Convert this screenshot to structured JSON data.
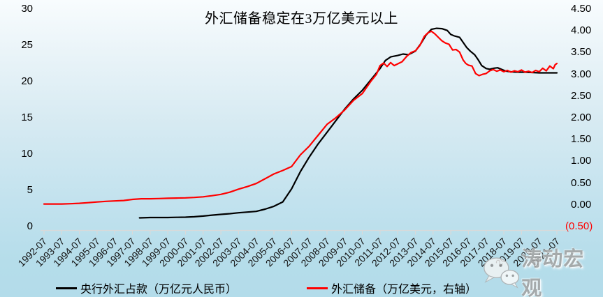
{
  "chart_data": {
    "type": "line",
    "title": "外汇储备稳定在3万亿美元以上",
    "background_top": "#f8fcfe",
    "background_bottom": "#b3dcea",
    "axis_color": "#d9d9d9",
    "grid": false,
    "legend_position": "bottom",
    "x_labels": [
      "1992-07",
      "1993-07",
      "1994-07",
      "1995-07",
      "1996-07",
      "1997-07",
      "1998-07",
      "1999-07",
      "2000-07",
      "2001-07",
      "2002-07",
      "2003-07",
      "2004-07",
      "2005-07",
      "2006-07",
      "2007-07",
      "2008-07",
      "2009-07",
      "2010-07",
      "2011-07",
      "2012-07",
      "2013-07",
      "2014-07",
      "2015-07",
      "2016-07",
      "2017-07",
      "2018-07",
      "2019-07",
      "2020-07",
      "2021-07"
    ],
    "left_axis": {
      "min": 0,
      "max": 30,
      "ticks": [
        30,
        25,
        20,
        15,
        10,
        5,
        0
      ]
    },
    "right_axis": {
      "min": -0.5,
      "max": 4.5,
      "ticks": [
        {
          "label": "4.50",
          "value": 4.5
        },
        {
          "label": "4.00",
          "value": 4.0
        },
        {
          "label": "3.50",
          "value": 3.5
        },
        {
          "label": "3.00",
          "value": 3.0
        },
        {
          "label": "2.50",
          "value": 2.5
        },
        {
          "label": "2.00",
          "value": 2.0
        },
        {
          "label": "1.50",
          "value": 1.5
        },
        {
          "label": "1.00",
          "value": 1.0
        },
        {
          "label": "0.50",
          "value": 0.5
        },
        {
          "label": "0.00",
          "value": 0.0
        },
        {
          "label": "(0.50)",
          "value": -0.5,
          "color": "#ff0000",
          "dx": -8
        }
      ]
    },
    "series": [
      {
        "name": "央行外汇占款（万亿元人民币）",
        "color": "#000000",
        "axis": "left",
        "points": [
          [
            5.4,
            1.2
          ],
          [
            6,
            1.25
          ],
          [
            6.5,
            1.25
          ],
          [
            7,
            1.25
          ],
          [
            7.5,
            1.28
          ],
          [
            8,
            1.3
          ],
          [
            8.5,
            1.36
          ],
          [
            9,
            1.45
          ],
          [
            9.5,
            1.58
          ],
          [
            10,
            1.68
          ],
          [
            10.5,
            1.78
          ],
          [
            11,
            1.9
          ],
          [
            11.5,
            2.0
          ],
          [
            12,
            2.1
          ],
          [
            12.5,
            2.4
          ],
          [
            13,
            2.8
          ],
          [
            13.5,
            3.4
          ],
          [
            14,
            5.2
          ],
          [
            14.5,
            7.6
          ],
          [
            15,
            9.6
          ],
          [
            15.5,
            11.4
          ],
          [
            16,
            13.0
          ],
          [
            16.5,
            14.6
          ],
          [
            17,
            16.2
          ],
          [
            17.5,
            17.6
          ],
          [
            18,
            18.8
          ],
          [
            18.5,
            20.3
          ],
          [
            19,
            21.8
          ],
          [
            19.3,
            22.9
          ],
          [
            19.6,
            23.4
          ],
          [
            20,
            23.6
          ],
          [
            20.3,
            23.8
          ],
          [
            20.6,
            23.7
          ],
          [
            21,
            24.2
          ],
          [
            21.3,
            25.2
          ],
          [
            21.6,
            26.4
          ],
          [
            21.9,
            27.2
          ],
          [
            22.2,
            27.35
          ],
          [
            22.5,
            27.3
          ],
          [
            22.8,
            27.05
          ],
          [
            23,
            26.5
          ],
          [
            23.2,
            26.3
          ],
          [
            23.5,
            26.1
          ],
          [
            23.7,
            25.4
          ],
          [
            23.9,
            24.7
          ],
          [
            24.1,
            24.2
          ],
          [
            24.35,
            23.7
          ],
          [
            24.55,
            23.0
          ],
          [
            24.75,
            22.2
          ],
          [
            25,
            21.8
          ],
          [
            25.2,
            21.7
          ],
          [
            25.45,
            21.85
          ],
          [
            25.65,
            21.9
          ],
          [
            25.85,
            21.7
          ],
          [
            26.1,
            21.45
          ],
          [
            26.4,
            21.35
          ],
          [
            26.8,
            21.3
          ],
          [
            27.2,
            21.3
          ],
          [
            27.6,
            21.25
          ],
          [
            28,
            21.2
          ],
          [
            28.5,
            21.2
          ],
          [
            29,
            21.2
          ]
        ]
      },
      {
        "name": "外汇储备（万亿美元，右轴）",
        "color": "#ff0000",
        "axis": "right",
        "points": [
          [
            0,
            0.02
          ],
          [
            0.5,
            0.02
          ],
          [
            1,
            0.02
          ],
          [
            1.5,
            0.025
          ],
          [
            2,
            0.035
          ],
          [
            2.5,
            0.05
          ],
          [
            3,
            0.065
          ],
          [
            3.5,
            0.08
          ],
          [
            4,
            0.09
          ],
          [
            4.5,
            0.1
          ],
          [
            5,
            0.125
          ],
          [
            5.5,
            0.14
          ],
          [
            6,
            0.14
          ],
          [
            6.5,
            0.145
          ],
          [
            7,
            0.15
          ],
          [
            7.5,
            0.155
          ],
          [
            8,
            0.16
          ],
          [
            8.5,
            0.17
          ],
          [
            9,
            0.185
          ],
          [
            9.5,
            0.21
          ],
          [
            10,
            0.24
          ],
          [
            10.5,
            0.29
          ],
          [
            11,
            0.36
          ],
          [
            11.5,
            0.42
          ],
          [
            12,
            0.49
          ],
          [
            12.5,
            0.6
          ],
          [
            13,
            0.71
          ],
          [
            13.5,
            0.79
          ],
          [
            14,
            0.88
          ],
          [
            14.5,
            1.15
          ],
          [
            15,
            1.35
          ],
          [
            15.5,
            1.6
          ],
          [
            16,
            1.85
          ],
          [
            16.5,
            2.0
          ],
          [
            17,
            2.18
          ],
          [
            17.5,
            2.4
          ],
          [
            18,
            2.56
          ],
          [
            18.5,
            2.85
          ],
          [
            18.8,
            3.0
          ],
          [
            19,
            3.2
          ],
          [
            19.2,
            3.26
          ],
          [
            19.4,
            3.18
          ],
          [
            19.6,
            3.27
          ],
          [
            19.8,
            3.2
          ],
          [
            20,
            3.24
          ],
          [
            20.25,
            3.29
          ],
          [
            20.5,
            3.41
          ],
          [
            20.75,
            3.5
          ],
          [
            21,
            3.54
          ],
          [
            21.25,
            3.66
          ],
          [
            21.5,
            3.87
          ],
          [
            21.7,
            3.95
          ],
          [
            21.9,
            3.99
          ],
          [
            22.1,
            3.93
          ],
          [
            22.3,
            3.85
          ],
          [
            22.5,
            3.77
          ],
          [
            22.7,
            3.72
          ],
          [
            22.9,
            3.69
          ],
          [
            23.1,
            3.56
          ],
          [
            23.3,
            3.57
          ],
          [
            23.5,
            3.51
          ],
          [
            23.7,
            3.33
          ],
          [
            23.85,
            3.25
          ],
          [
            24,
            3.21
          ],
          [
            24.2,
            3.19
          ],
          [
            24.4,
            3.02
          ],
          [
            24.6,
            2.97
          ],
          [
            24.8,
            3.0
          ],
          [
            25,
            3.02
          ],
          [
            25.2,
            3.08
          ],
          [
            25.4,
            3.11
          ],
          [
            25.6,
            3.07
          ],
          [
            25.8,
            3.1
          ],
          [
            26,
            3.06
          ],
          [
            26.2,
            3.09
          ],
          [
            26.4,
            3.05
          ],
          [
            26.6,
            3.08
          ],
          [
            26.8,
            3.06
          ],
          [
            27,
            3.1
          ],
          [
            27.2,
            3.05
          ],
          [
            27.4,
            3.07
          ],
          [
            27.6,
            3.04
          ],
          [
            27.8,
            3.09
          ],
          [
            28,
            3.06
          ],
          [
            28.2,
            3.14
          ],
          [
            28.4,
            3.08
          ],
          [
            28.6,
            3.19
          ],
          [
            28.8,
            3.13
          ],
          [
            28.9,
            3.22
          ],
          [
            29,
            3.25
          ]
        ]
      }
    ]
  },
  "watermark": {
    "icon": "wechat-icon",
    "text": "涛动宏观"
  }
}
